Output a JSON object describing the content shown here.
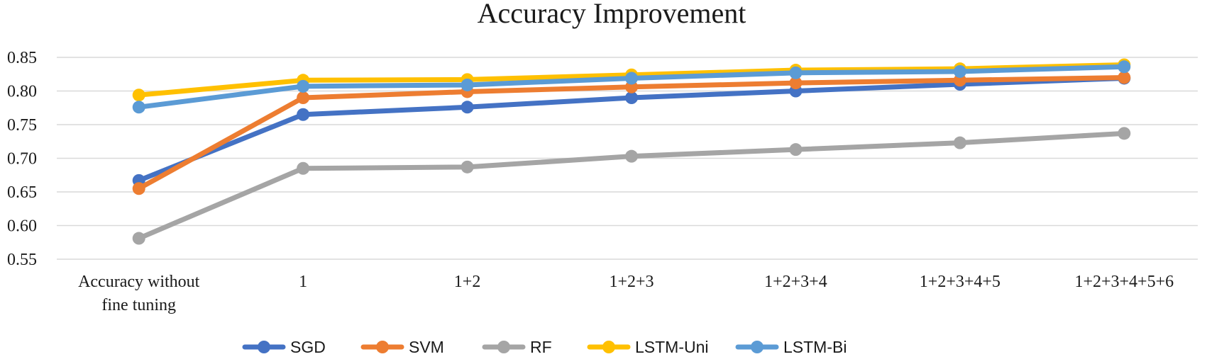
{
  "chart_data": {
    "type": "line",
    "title": "Accuracy Improvement",
    "xlabel": "",
    "ylabel": "",
    "categories": [
      "Accuracy without\nfine tuning",
      "1",
      "1+2",
      "1+2+3",
      "1+2+3+4",
      "1+2+3+4+5",
      "1+2+3+4+5+6"
    ],
    "yticks": [
      "0.55",
      "0.60",
      "0.65",
      "0.70",
      "0.75",
      "0.80",
      "0.85"
    ],
    "ylim": [
      0.55,
      0.85
    ],
    "grid": true,
    "legend": "bottom",
    "markers": true,
    "series": [
      {
        "name": "SGD",
        "color": "#4472C4",
        "values": [
          0.667,
          0.765,
          0.776,
          0.79,
          0.8,
          0.81,
          0.819
        ]
      },
      {
        "name": "SVM",
        "color": "#ED7D31",
        "values": [
          0.655,
          0.79,
          0.799,
          0.806,
          0.812,
          0.816,
          0.82
        ]
      },
      {
        "name": "RF",
        "color": "#A5A5A5",
        "values": [
          0.581,
          0.685,
          0.687,
          0.703,
          0.713,
          0.723,
          0.737
        ]
      },
      {
        "name": "LSTM-Uni",
        "color": "#FFC000",
        "values": [
          0.794,
          0.816,
          0.817,
          0.824,
          0.831,
          0.833,
          0.839
        ]
      },
      {
        "name": "LSTM-Bi",
        "color": "#5B9BD5",
        "values": [
          0.776,
          0.807,
          0.809,
          0.819,
          0.827,
          0.829,
          0.836
        ]
      }
    ]
  }
}
